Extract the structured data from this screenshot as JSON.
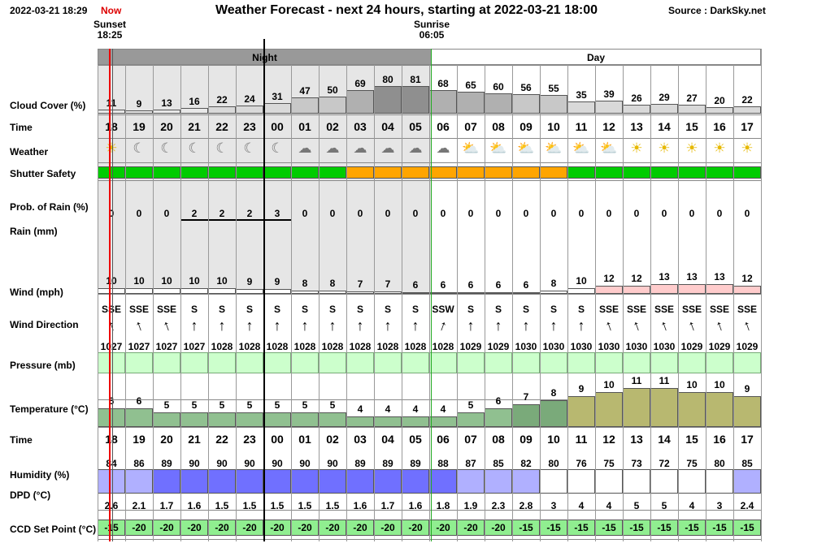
{
  "header": {
    "date": "2022-03-21 18:29",
    "now": "Now",
    "title": "Weather Forecast - next 24 hours, starting at 2022-03-21 18:00",
    "source": "Source : DarkSky.net"
  },
  "sunset": {
    "label": "Sunset",
    "time": "18:25"
  },
  "sunrise": {
    "label": "Sunrise",
    "time": "06:05"
  },
  "bands": {
    "night": "Night",
    "day": "Day"
  },
  "labels": {
    "cloud": "Cloud Cover (%)",
    "time": "Time",
    "weather": "Weather",
    "shutter": "Shutter Safety",
    "rain_prob": "Prob. of Rain (%)",
    "rain": "Rain (mm)",
    "wind": "Wind (mph)",
    "wind_dir": "Wind Direction",
    "pressure": "Pressure (mb)",
    "temp": "Temperature (°C)",
    "time2": "Time",
    "humidity": "Humidity (%)",
    "dpd": "DPD (°C)",
    "ccd": "CCD Set Point (°C)"
  },
  "hours": [
    "18",
    "19",
    "20",
    "21",
    "22",
    "23",
    "00",
    "01",
    "02",
    "03",
    "04",
    "05",
    "06",
    "07",
    "08",
    "09",
    "10",
    "11",
    "12",
    "13",
    "14",
    "15",
    "16",
    "17"
  ],
  "cloud": [
    11,
    9,
    13,
    16,
    22,
    24,
    31,
    47,
    50,
    69,
    80,
    81,
    68,
    65,
    60,
    56,
    55,
    35,
    39,
    26,
    29,
    27,
    20,
    22
  ],
  "weather": [
    "sun",
    "moon",
    "moon",
    "moon",
    "moon",
    "moon",
    "moon",
    "cloud-moon",
    "cloud-moon",
    "cloud-moon",
    "cloud-moon",
    "cloud-moon",
    "cloud-moon",
    "cloud-sun",
    "cloud-sun",
    "cloud-sun",
    "cloud-sun",
    "cloud-sun",
    "cloud-sun",
    "sun",
    "sun",
    "sun",
    "sun",
    "sun"
  ],
  "shutter": [
    "green",
    "green",
    "green",
    "green",
    "green",
    "green",
    "green",
    "green",
    "green",
    "orange",
    "orange",
    "orange",
    "orange",
    "orange",
    "orange",
    "orange",
    "orange",
    "green",
    "green",
    "green",
    "green",
    "green",
    "green",
    "green"
  ],
  "rain_prob": [
    0,
    0,
    0,
    2,
    2,
    2,
    3,
    0,
    0,
    0,
    0,
    0,
    0,
    0,
    0,
    0,
    0,
    0,
    0,
    0,
    0,
    0,
    0,
    0
  ],
  "wind": [
    10,
    10,
    10,
    10,
    10,
    9,
    9,
    8,
    8,
    7,
    7,
    6,
    6,
    6,
    6,
    6,
    8,
    10,
    12,
    12,
    13,
    13,
    13,
    12
  ],
  "wind_dir": [
    "SSE",
    "SSE",
    "SSE",
    "S",
    "S",
    "S",
    "S",
    "S",
    "S",
    "S",
    "S",
    "S",
    "SSW",
    "S",
    "S",
    "S",
    "S",
    "S",
    "SSE",
    "SSE",
    "SSE",
    "SSE",
    "SSE",
    "SSE"
  ],
  "pressure": [
    1027,
    1027,
    1027,
    1027,
    1028,
    1028,
    1028,
    1028,
    1028,
    1028,
    1028,
    1028,
    1028,
    1029,
    1029,
    1030,
    1030,
    1030,
    1030,
    1030,
    1030,
    1029,
    1029,
    1029
  ],
  "temp": [
    6,
    6,
    5,
    5,
    5,
    5,
    5,
    5,
    5,
    4,
    4,
    4,
    4,
    5,
    6,
    7,
    8,
    9,
    10,
    11,
    11,
    10,
    10,
    9
  ],
  "humidity": [
    84,
    86,
    89,
    90,
    90,
    90,
    90,
    90,
    90,
    89,
    89,
    89,
    88,
    87,
    85,
    82,
    80,
    76,
    75,
    73,
    72,
    75,
    80,
    85
  ],
  "dpd": [
    "2.6",
    "2.1",
    "1.7",
    "1.6",
    "1.5",
    "1.5",
    "1.5",
    "1.5",
    "1.5",
    "1.6",
    "1.7",
    "1.6",
    "1.8",
    "1.9",
    "2.3",
    "2.8",
    "3",
    "4",
    "4",
    "5",
    "5",
    "4",
    "3",
    "2.4"
  ],
  "ccd": [
    -15,
    -20,
    -20,
    -20,
    -20,
    -20,
    -20,
    -20,
    -20,
    -20,
    -20,
    -20,
    -20,
    -20,
    -20,
    -15,
    -15,
    -15,
    -15,
    -15,
    -15,
    -15,
    -15,
    -15
  ],
  "colors": {
    "green": "#00cc00",
    "orange": "#ffa500",
    "night": "#e6e6e6",
    "cloud_scale": [
      "#d9d9d9",
      "#c8c8c8",
      "#b0b0b0",
      "#8f8f8f"
    ],
    "wind_high": "#ffcccc",
    "pressure": "#ccffcc",
    "temp_low": "#90c090",
    "temp_high": "#b8b870",
    "temp_mid": "#7aaa7a",
    "humidity_high": "#7070ff",
    "humidity_mid": "#b0b0ff",
    "ccd_green": "#90ee90"
  }
}
